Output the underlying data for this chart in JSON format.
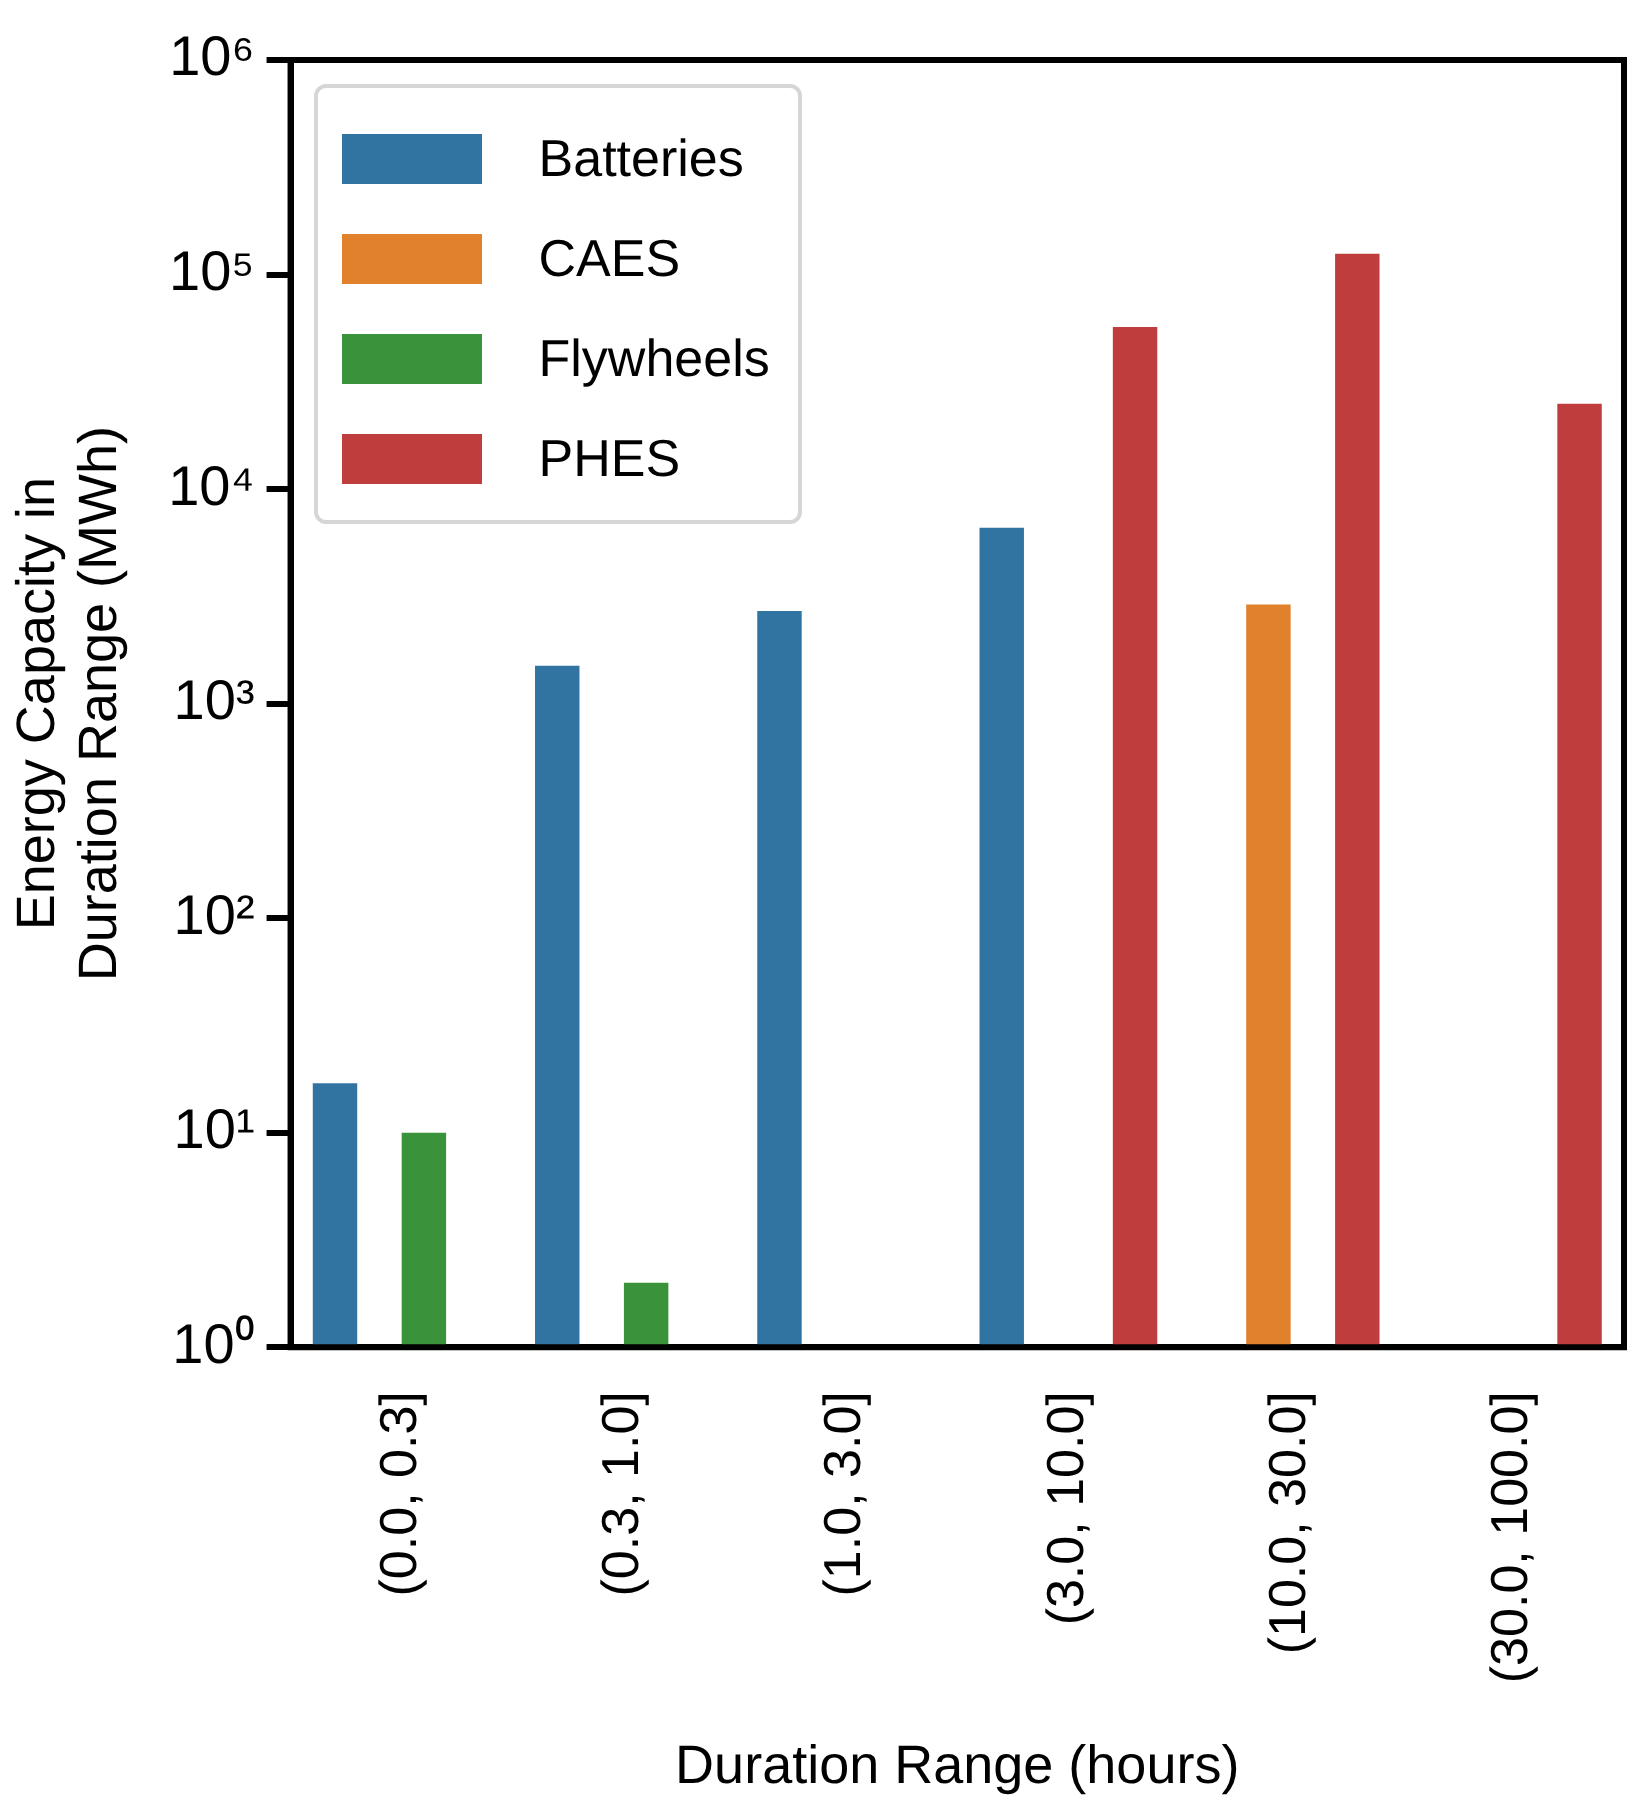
{
  "chart_data": {
    "type": "bar",
    "xlabel": "Duration Range (hours)",
    "ylabel": "Energy Capacity in\nDuration Range (MWh)",
    "categories": [
      "(0.0, 0.3]",
      "(0.3, 1.0]",
      "(1.0, 3.0]",
      "(3.0, 10.0]",
      "(10.0, 30.0]",
      "(30.0, 100.0]"
    ],
    "series": [
      {
        "name": "Batteries",
        "color": "#3274a1",
        "values": [
          17,
          1500,
          2700,
          6600,
          null,
          null
        ]
      },
      {
        "name": "CAES",
        "color": "#e1812c",
        "values": [
          null,
          null,
          null,
          null,
          2900,
          null
        ]
      },
      {
        "name": "Flywheels",
        "color": "#3a923a",
        "values": [
          10,
          2,
          null,
          null,
          null,
          null
        ]
      },
      {
        "name": "PHES",
        "color": "#c03d3e",
        "values": [
          null,
          null,
          null,
          57000,
          125000,
          25000
        ]
      }
    ],
    "log": "y",
    "ylim": [
      1,
      1000000
    ],
    "yticks": [
      {
        "value": 1,
        "label": "10⁰"
      },
      {
        "value": 10,
        "label": "10¹"
      },
      {
        "value": 100,
        "label": "10²"
      },
      {
        "value": 1000,
        "label": "10³"
      },
      {
        "value": 10000,
        "label": "10⁴"
      },
      {
        "value": 100000,
        "label": "10⁵"
      },
      {
        "value": 1000000,
        "label": "10⁶"
      }
    ],
    "grid": false,
    "legend": "top left"
  }
}
